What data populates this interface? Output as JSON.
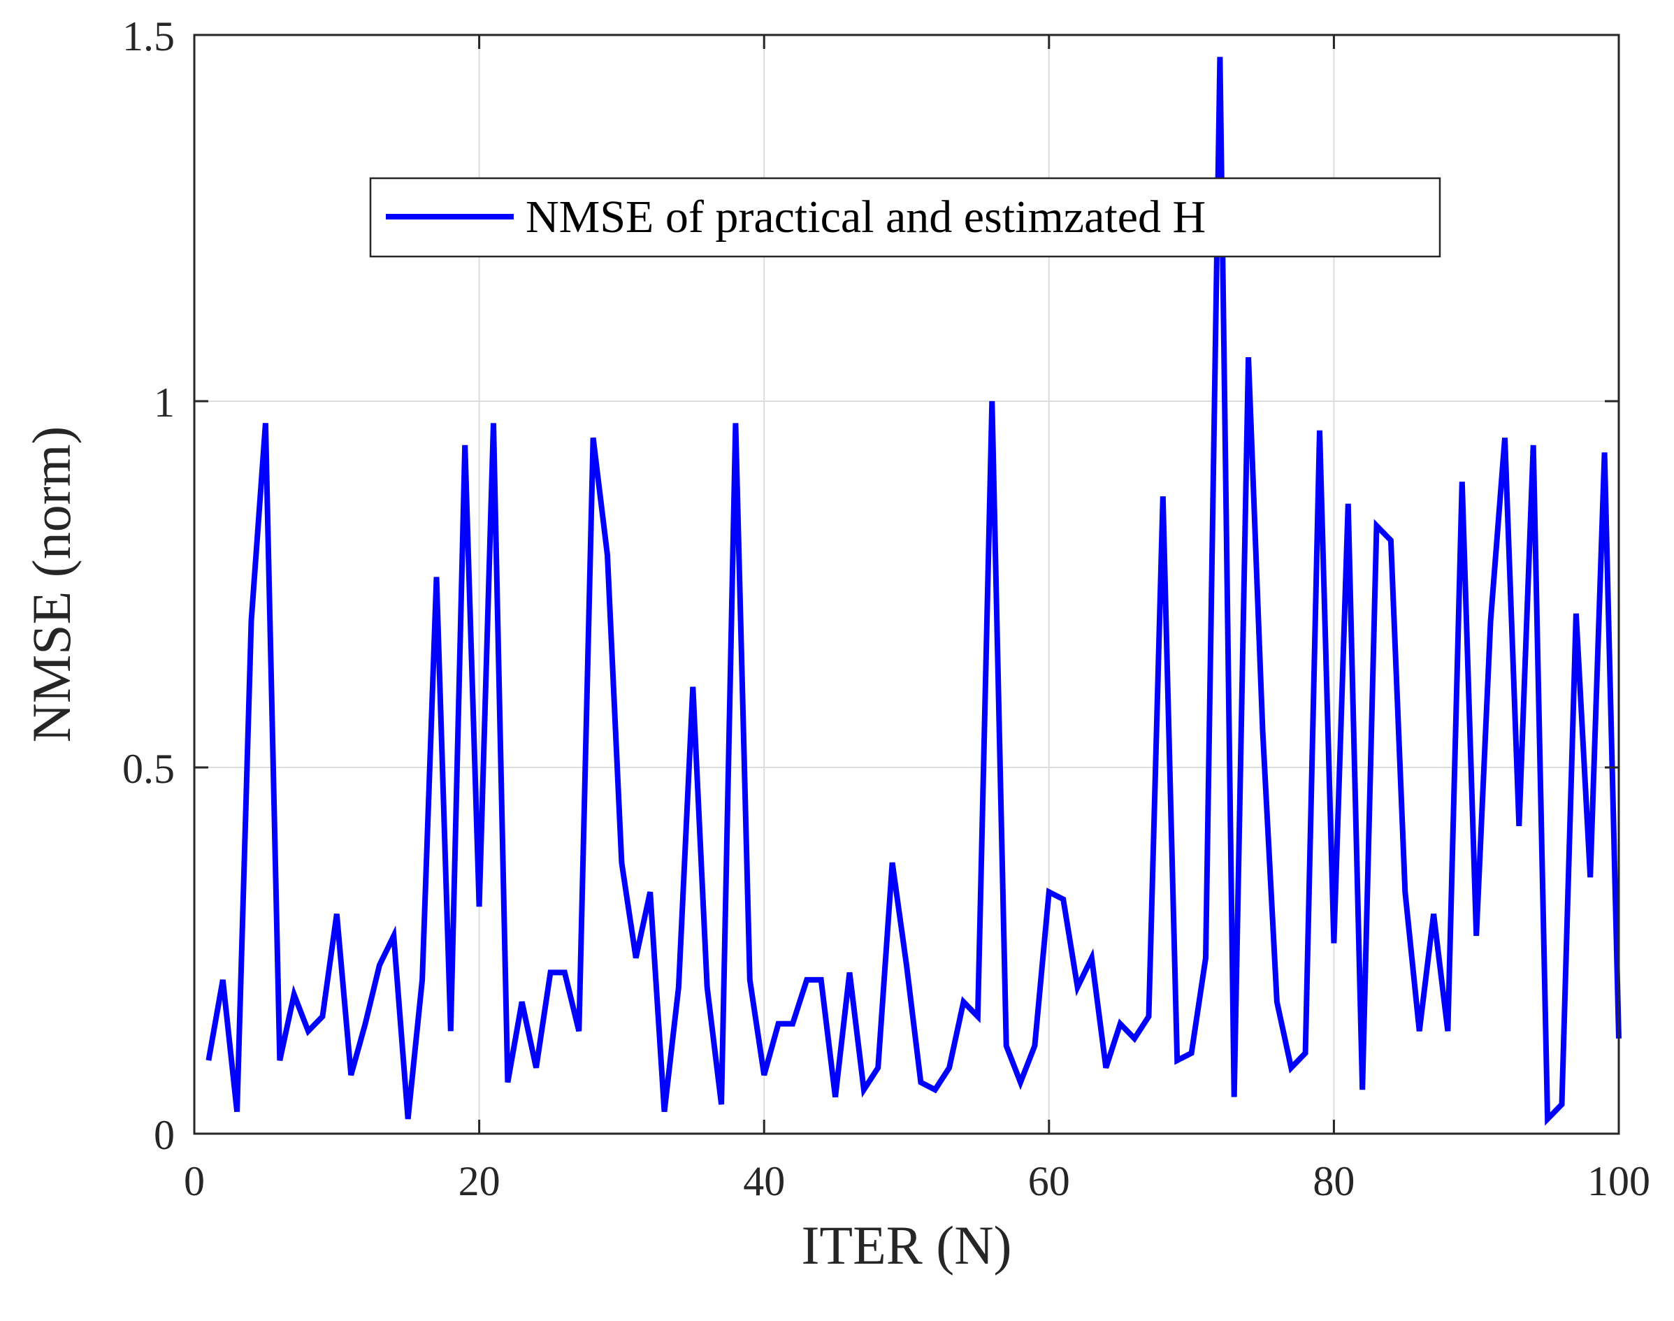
{
  "chart_data": {
    "type": "line",
    "title": "",
    "xlabel": "ITER (N)",
    "ylabel": "NMSE (norm)",
    "xlim": [
      0,
      100
    ],
    "ylim": [
      0,
      1.5
    ],
    "xticks": [
      0,
      20,
      40,
      60,
      80,
      100
    ],
    "xtick_labels": [
      "0",
      "20",
      "40",
      "60",
      "80",
      "100"
    ],
    "yticks": [
      0,
      0.5,
      1,
      1.5
    ],
    "ytick_labels": [
      "0",
      "0.5",
      "1",
      "1.5"
    ],
    "grid": true,
    "legend_position": "top-center",
    "series": [
      {
        "name": "NMSE of practical and estimzated H",
        "color": "#0000ff",
        "x": [
          1,
          2,
          3,
          4,
          5,
          6,
          7,
          8,
          9,
          10,
          11,
          12,
          13,
          14,
          15,
          16,
          17,
          18,
          19,
          20,
          21,
          22,
          23,
          24,
          25,
          26,
          27,
          28,
          29,
          30,
          31,
          32,
          33,
          34,
          35,
          36,
          37,
          38,
          39,
          40,
          41,
          42,
          43,
          44,
          45,
          46,
          47,
          48,
          49,
          50,
          51,
          52,
          53,
          54,
          55,
          56,
          57,
          58,
          59,
          60,
          61,
          62,
          63,
          64,
          65,
          66,
          67,
          68,
          69,
          70,
          71,
          72,
          73,
          74,
          75,
          76,
          77,
          78,
          79,
          80,
          81,
          82,
          83,
          84,
          85,
          86,
          87,
          88,
          89,
          90,
          91,
          92,
          93,
          94,
          95,
          96,
          97,
          98,
          99,
          100
        ],
        "values": [
          0.1,
          0.21,
          0.03,
          0.7,
          0.97,
          0.1,
          0.19,
          0.14,
          0.16,
          0.3,
          0.08,
          0.15,
          0.23,
          0.27,
          0.02,
          0.21,
          0.76,
          0.14,
          0.94,
          0.31,
          0.97,
          0.07,
          0.18,
          0.09,
          0.22,
          0.22,
          0.14,
          0.95,
          0.79,
          0.37,
          0.24,
          0.33,
          0.03,
          0.2,
          0.61,
          0.2,
          0.04,
          0.97,
          0.21,
          0.08,
          0.15,
          0.15,
          0.21,
          0.21,
          0.05,
          0.22,
          0.06,
          0.09,
          0.37,
          0.23,
          0.07,
          0.06,
          0.09,
          0.18,
          0.16,
          1.0,
          0.12,
          0.07,
          0.12,
          0.33,
          0.32,
          0.2,
          0.24,
          0.09,
          0.15,
          0.13,
          0.16,
          0.87,
          0.1,
          0.11,
          0.24,
          1.47,
          0.05,
          1.06,
          0.55,
          0.18,
          0.09,
          0.11,
          0.96,
          0.26,
          0.86,
          0.06,
          0.83,
          0.81,
          0.33,
          0.14,
          0.3,
          0.14,
          0.89,
          0.27,
          0.7,
          0.95,
          0.42,
          0.94,
          0.02,
          0.04,
          0.71,
          0.35,
          0.93,
          0.13
        ]
      }
    ]
  }
}
